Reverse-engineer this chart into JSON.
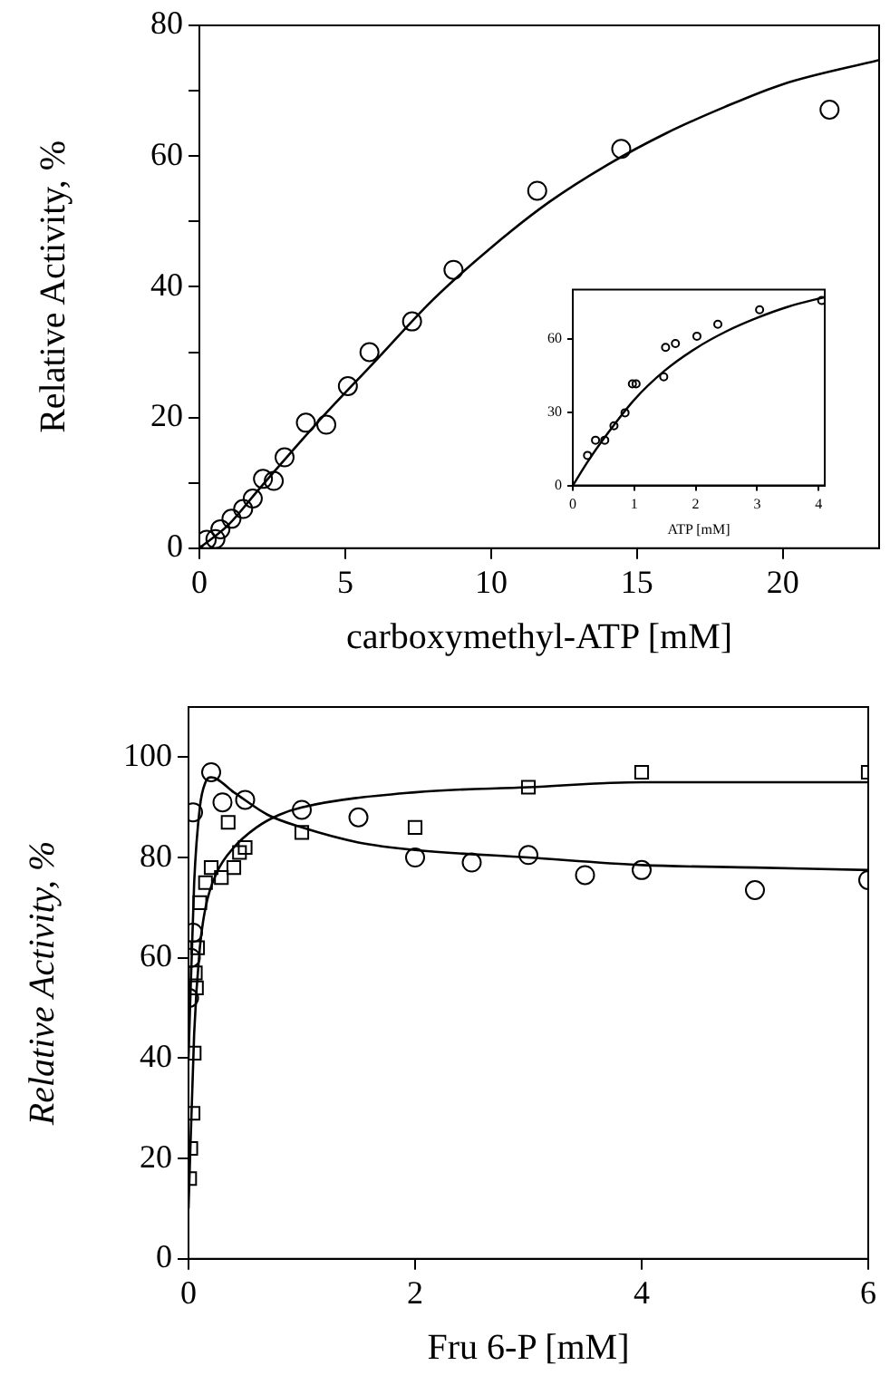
{
  "chart_data": [
    {
      "type": "scatter",
      "xlabel": "carboxymethyl-ATP [mM]",
      "ylabel": "Relative Activity, %",
      "xlim": [
        0,
        23.3
      ],
      "ylim": [
        0,
        80
      ],
      "xticks": [
        0,
        5,
        10,
        15,
        20
      ],
      "yticks": [
        0,
        {
          "value": 10,
          "label": null
        },
        20,
        {
          "value": 30,
          "label": null
        },
        40,
        {
          "value": 50,
          "label": null
        },
        60,
        {
          "value": 70,
          "label": null
        },
        80
      ],
      "marker": "circle",
      "series": [
        {
          "type": "scatter",
          "color": "#000000",
          "x": [
            0.25,
            0.55,
            0.72,
            1.1,
            1.5,
            1.83,
            2.18,
            2.55,
            2.92,
            3.65,
            4.35,
            5.09,
            5.83,
            7.29,
            8.71,
            11.58,
            14.46,
            21.6
          ],
          "values": [
            1.3,
            1.4,
            2.9,
            4.5,
            6.0,
            7.6,
            10.6,
            10.3,
            13.9,
            19.2,
            18.9,
            24.8,
            30.0,
            34.7,
            42.6,
            54.7,
            61.1,
            67.1
          ]
        },
        {
          "type": "line",
          "color": "#000000",
          "marker": "none",
          "x": [
            0,
            1,
            2,
            4,
            6,
            8,
            10,
            12,
            14,
            16,
            18,
            20,
            23.3
          ],
          "values": [
            0,
            3.6,
            8.8,
            19,
            28.5,
            38,
            46,
            53,
            58.7,
            63.5,
            67.5,
            71,
            74.7
          ]
        }
      ]
    },
    {
      "type": "scatter",
      "xlabel": "ATP [mM]",
      "xlim": [
        0,
        4.1
      ],
      "ylim": [
        0,
        80
      ],
      "xticks": [
        0,
        1,
        2,
        3,
        4
      ],
      "yticks": [
        0,
        30,
        60
      ],
      "marker": "circle",
      "series": [
        {
          "type": "scatter",
          "color": "#000000",
          "x": [
            0.24,
            0.37,
            0.52,
            0.67,
            0.85,
            0.97,
            1.03,
            1.48,
            1.51,
            1.67,
            2.02,
            2.36,
            3.04,
            4.05
          ],
          "values": [
            12.3,
            18.5,
            18.5,
            24.4,
            29.7,
            41.5,
            41.5,
            44.4,
            56.4,
            58,
            61,
            65.9,
            71.8,
            75.6
          ]
        },
        {
          "type": "line",
          "color": "#000000",
          "marker": "none",
          "x": [
            0,
            0.25,
            0.5,
            1,
            1.5,
            2,
            2.5,
            3,
            3.5,
            4.1
          ],
          "values": [
            0,
            10,
            19,
            35,
            47,
            56,
            63,
            68.5,
            73,
            77
          ]
        }
      ]
    },
    {
      "type": "scatter",
      "xlabel": "Fru 6-P [mM]",
      "ylabel": "Relative Activity, %",
      "xlim": [
        0,
        6
      ],
      "ylim": [
        0,
        110
      ],
      "xticks": [
        0,
        2,
        4,
        6
      ],
      "yticks": [
        0,
        20,
        40,
        60,
        80,
        100
      ],
      "series": [
        {
          "type": "scatter",
          "color": "#000000",
          "marker": "circle",
          "x": [
            0.005,
            0.02,
            0.04,
            0.04,
            0.2,
            0.3,
            0.5,
            1,
            1.5,
            2,
            2.5,
            3,
            3.5,
            4,
            5,
            6
          ],
          "values": [
            52,
            60,
            65,
            89,
            97,
            91,
            91.5,
            89.5,
            88,
            80,
            79,
            80.5,
            76.5,
            77.5,
            73.5,
            75.5
          ]
        },
        {
          "type": "scatter",
          "color": "#000000",
          "marker": "square",
          "x": [
            0.01,
            0.02,
            0.04,
            0.05,
            0.06,
            0.07,
            0.08,
            0.1,
            0.15,
            0.2,
            0.29,
            0.35,
            0.4,
            0.45,
            0.5,
            1,
            2,
            3,
            4,
            6
          ],
          "values": [
            16,
            22,
            29,
            41,
            57,
            54,
            62,
            71,
            75,
            78,
            76,
            87,
            78,
            81,
            82,
            85,
            86,
            94,
            97,
            97
          ]
        },
        {
          "type": "line",
          "color": "#000000",
          "marker": "none",
          "x": [
            0,
            0.05,
            0.1,
            0.15,
            0.2,
            0.4,
            0.7,
            1,
            1.5,
            2,
            3,
            4,
            5,
            6
          ],
          "values": [
            40,
            75,
            90,
            95,
            96,
            93,
            88.5,
            86,
            83,
            81.5,
            80,
            78.5,
            78,
            77.5
          ]
        },
        {
          "type": "line",
          "color": "#000000",
          "marker": "none",
          "x": [
            0,
            0.05,
            0.1,
            0.15,
            0.25,
            0.4,
            0.6,
            0.8,
            1,
            2,
            3,
            4,
            6
          ],
          "values": [
            10,
            45,
            62,
            70,
            77,
            82,
            86,
            88.5,
            90,
            93,
            94,
            95,
            95
          ]
        }
      ]
    }
  ]
}
